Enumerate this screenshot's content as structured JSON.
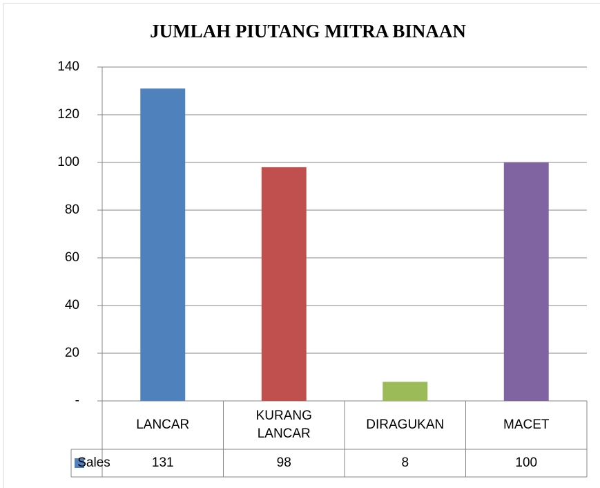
{
  "chart_data": {
    "type": "bar",
    "title": "JUMLAH PIUTANG MITRA BINAAN",
    "categories": [
      "LANCAR",
      "KURANG LANCAR",
      "DIRAGUKAN",
      "MACET"
    ],
    "series": [
      {
        "name": "Sales",
        "color": "#4f81bd",
        "colors": [
          "#4f81bd",
          "#c0504d",
          "#9bbb59",
          "#8064a2"
        ],
        "values": [
          131,
          98,
          8,
          100
        ]
      }
    ],
    "ylim": [
      0,
      140
    ],
    "yticks": [
      {
        "value": 0,
        "label": "-"
      },
      20,
      40,
      60,
      80,
      100,
      120,
      140
    ],
    "grid": true
  }
}
